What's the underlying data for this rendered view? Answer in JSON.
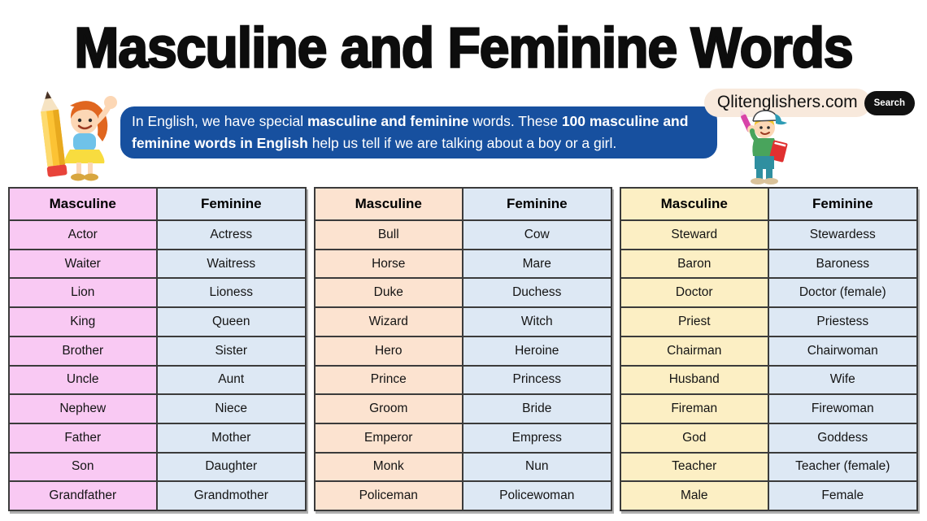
{
  "page": {
    "title": "Masculine and Feminine Words"
  },
  "site": {
    "name": "Qlitenglishers.com",
    "search_label": "Search"
  },
  "banner": {
    "bg_color": "#17509f",
    "segments": [
      {
        "text": "In English, we have special ",
        "bold": false
      },
      {
        "text": "masculine and feminine",
        "bold": true
      },
      {
        "text": " words. These ",
        "bold": false
      },
      {
        "text": "100 masculine and feminine words in English",
        "bold": true
      },
      {
        "text": " help us tell if we are talking about a boy or a girl.",
        "bold": false
      }
    ]
  },
  "icons": {
    "girl": "girl-with-pencil-illustration",
    "boy": "boy-with-book-illustration"
  },
  "colors": {
    "site_pill_bg": "#f8e9dc",
    "search_btn_bg": "#111111",
    "feminine_cell_bg": "#dde8f4",
    "table1_masculine_bg": "#f9c9f3",
    "table2_masculine_bg": "#fce3d0",
    "table3_masculine_bg": "#fcefc4",
    "border": "#3b3b3b"
  },
  "tables": [
    {
      "masculine_color": "#f9c9f3",
      "feminine_color": "#dde8f4",
      "headers": {
        "masculine": "Masculine",
        "feminine": "Feminine"
      },
      "rows": [
        {
          "masculine": "Actor",
          "feminine": "Actress"
        },
        {
          "masculine": "Waiter",
          "feminine": "Waitress"
        },
        {
          "masculine": "Lion",
          "feminine": "Lioness"
        },
        {
          "masculine": "King",
          "feminine": "Queen"
        },
        {
          "masculine": "Brother",
          "feminine": "Sister"
        },
        {
          "masculine": "Uncle",
          "feminine": "Aunt"
        },
        {
          "masculine": "Nephew",
          "feminine": "Niece"
        },
        {
          "masculine": "Father",
          "feminine": "Mother"
        },
        {
          "masculine": "Son",
          "feminine": "Daughter"
        },
        {
          "masculine": "Grandfather",
          "feminine": "Grandmother"
        }
      ]
    },
    {
      "masculine_color": "#fce3d0",
      "feminine_color": "#dde8f4",
      "headers": {
        "masculine": "Masculine",
        "feminine": "Feminine"
      },
      "rows": [
        {
          "masculine": "Bull",
          "feminine": "Cow"
        },
        {
          "masculine": "Horse",
          "feminine": "Mare"
        },
        {
          "masculine": "Duke",
          "feminine": "Duchess"
        },
        {
          "masculine": "Wizard",
          "feminine": "Witch"
        },
        {
          "masculine": "Hero",
          "feminine": "Heroine"
        },
        {
          "masculine": "Prince",
          "feminine": "Princess"
        },
        {
          "masculine": "Groom",
          "feminine": "Bride"
        },
        {
          "masculine": "Emperor",
          "feminine": "Empress"
        },
        {
          "masculine": "Monk",
          "feminine": "Nun"
        },
        {
          "masculine": "Policeman",
          "feminine": "Policewoman"
        }
      ]
    },
    {
      "masculine_color": "#fcefc4",
      "feminine_color": "#dde8f4",
      "headers": {
        "masculine": "Masculine",
        "feminine": "Feminine"
      },
      "rows": [
        {
          "masculine": "Steward",
          "feminine": "Stewardess"
        },
        {
          "masculine": "Baron",
          "feminine": "Baroness"
        },
        {
          "masculine": "Doctor",
          "feminine": "Doctor (female)"
        },
        {
          "masculine": "Priest",
          "feminine": "Priestess"
        },
        {
          "masculine": "Chairman",
          "feminine": "Chairwoman"
        },
        {
          "masculine": "Husband",
          "feminine": "Wife"
        },
        {
          "masculine": "Fireman",
          "feminine": "Firewoman"
        },
        {
          "masculine": "God",
          "feminine": "Goddess"
        },
        {
          "masculine": "Teacher",
          "feminine": "Teacher (female)"
        },
        {
          "masculine": "Male",
          "feminine": "Female"
        }
      ]
    }
  ]
}
